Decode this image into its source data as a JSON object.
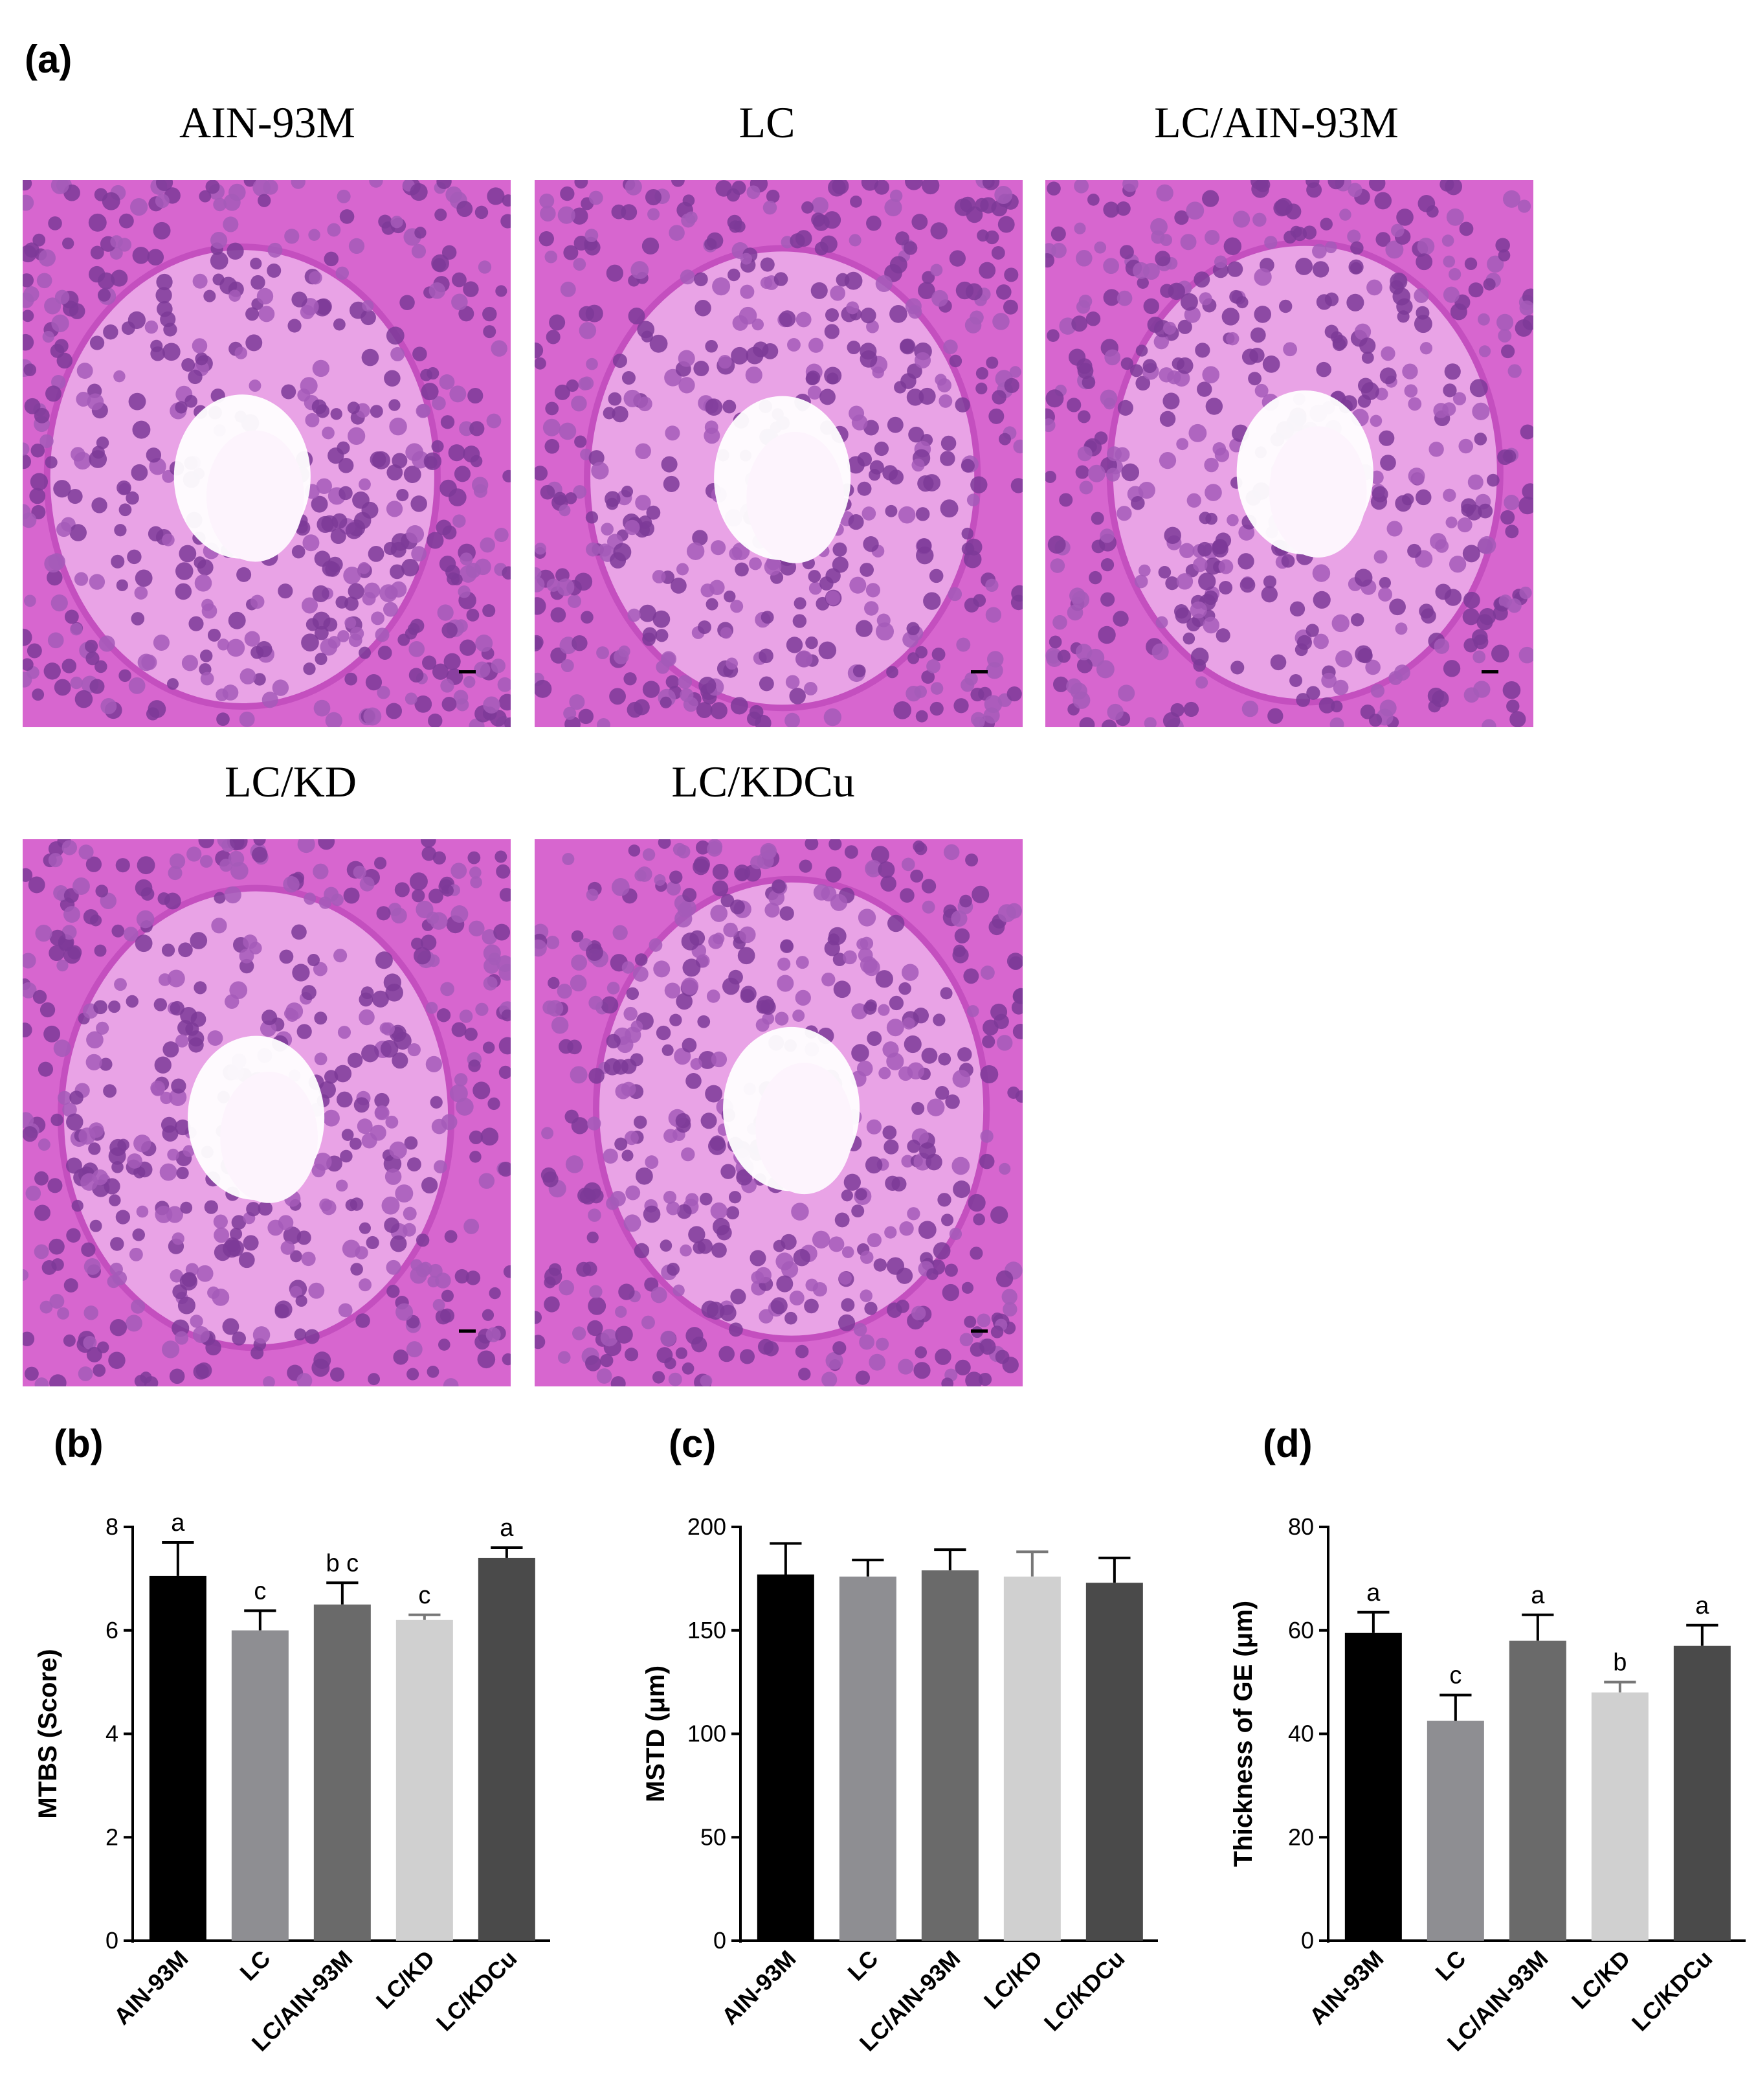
{
  "figure_a": {
    "label": "(a)",
    "titles": [
      "AIN-93M",
      "LC",
      "LC/AIN-93M",
      "LC/KD",
      "LC/KDCu"
    ]
  },
  "chart_data": [
    {
      "type": "bar",
      "panel_label": "(b)",
      "y_label": "MTBS (Score)",
      "categories": [
        "AIN-93M",
        "LC",
        "LC/AIN-93M",
        "LC/KD",
        "LC/KDCu"
      ],
      "values": [
        7.05,
        6.0,
        6.5,
        6.2,
        7.4
      ],
      "errors": [
        0.65,
        0.38,
        0.42,
        0.1,
        0.2
      ],
      "letters": [
        "a",
        "c",
        "b c",
        "c",
        "a"
      ],
      "colors": [
        "#000000",
        "#8e8e92",
        "#6a6a6a",
        "#d0d0d0",
        "#4a4a4a"
      ],
      "ylim": [
        0,
        8
      ],
      "yticks": [
        0,
        2,
        4,
        6,
        8
      ]
    },
    {
      "type": "bar",
      "panel_label": "(c)",
      "y_label": "MSTD (μm)",
      "categories": [
        "AIN-93M",
        "LC",
        "LC/AIN-93M",
        "LC/KD",
        "LC/KDCu"
      ],
      "values": [
        177,
        176,
        179,
        176,
        173
      ],
      "errors": [
        15,
        8,
        10,
        12,
        12
      ],
      "colors": [
        "#000000",
        "#8e8e92",
        "#6a6a6a",
        "#d0d0d0",
        "#4a4a4a"
      ],
      "ylim": [
        0,
        200
      ],
      "yticks": [
        0,
        50,
        100,
        150,
        200
      ]
    },
    {
      "type": "bar",
      "panel_label": "(d)",
      "y_label": "Thickness of GE (μm)",
      "categories": [
        "AIN-93M",
        "LC",
        "LC/AIN-93M",
        "LC/KD",
        "LC/KDCu"
      ],
      "values": [
        59.5,
        42.5,
        58,
        48,
        57
      ],
      "errors": [
        4,
        5,
        5,
        2,
        4
      ],
      "letters": [
        "a",
        "c",
        "a",
        "b",
        "a"
      ],
      "colors": [
        "#000000",
        "#8e8e92",
        "#6a6a6a",
        "#d0d0d0",
        "#4a4a4a"
      ],
      "ylim": [
        0,
        80
      ],
      "yticks": [
        0,
        20,
        40,
        60,
        80
      ]
    }
  ]
}
